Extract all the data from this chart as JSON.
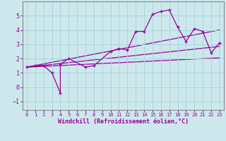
{
  "xlabel": "Windchill (Refroidissement éolien,°C)",
  "bg_color": "#cde8ec",
  "grid_color": "#a8d5dc",
  "line_color": "#990099",
  "spine_color": "#888888",
  "xlim": [
    -0.5,
    23.5
  ],
  "ylim": [
    -1.6,
    6.0
  ],
  "xticks": [
    0,
    1,
    2,
    3,
    4,
    5,
    6,
    7,
    8,
    9,
    10,
    11,
    12,
    13,
    14,
    15,
    16,
    17,
    18,
    19,
    20,
    21,
    22,
    23
  ],
  "yticks": [
    -1,
    0,
    1,
    2,
    3,
    4,
    5
  ],
  "series1_x": [
    0,
    1,
    2,
    3,
    4,
    4,
    5,
    7,
    8,
    10,
    11,
    12,
    13,
    14,
    15,
    16,
    17,
    18,
    19,
    20,
    21,
    22,
    23
  ],
  "series1_y": [
    1.4,
    1.5,
    1.5,
    1.0,
    -0.4,
    1.6,
    2.0,
    1.4,
    1.5,
    2.5,
    2.7,
    2.6,
    3.9,
    3.9,
    5.1,
    5.3,
    5.4,
    4.2,
    3.2,
    4.1,
    3.9,
    2.4,
    3.1
  ],
  "reg_lines": [
    {
      "x": [
        0,
        23
      ],
      "y": [
        1.4,
        2.05
      ]
    },
    {
      "x": [
        0,
        23
      ],
      "y": [
        1.4,
        2.85
      ]
    },
    {
      "x": [
        0,
        23
      ],
      "y": [
        1.4,
        4.0
      ]
    }
  ]
}
